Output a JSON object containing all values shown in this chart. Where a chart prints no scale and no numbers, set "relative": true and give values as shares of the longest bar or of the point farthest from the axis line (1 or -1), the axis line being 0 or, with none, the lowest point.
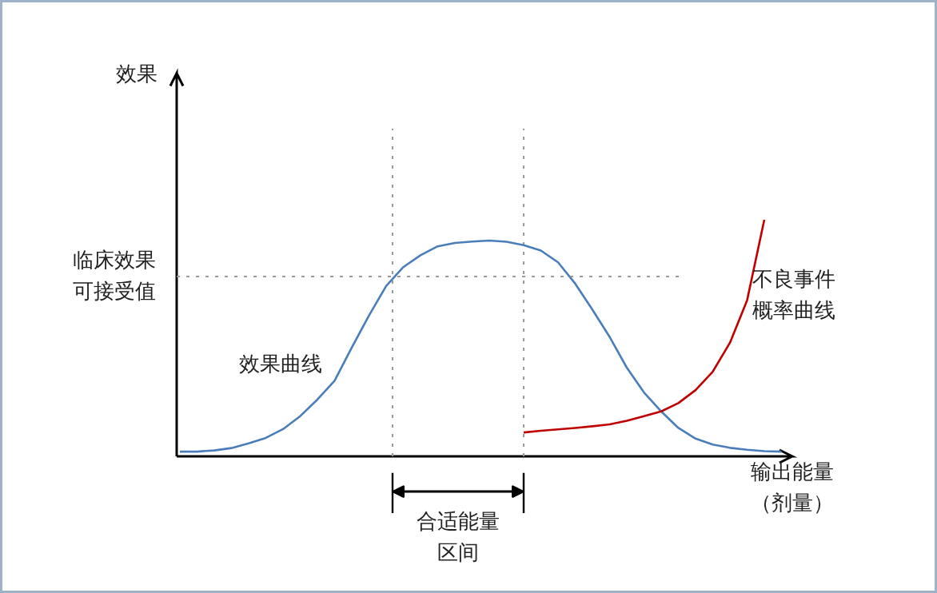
{
  "chart_data": {
    "type": "line",
    "relative": true,
    "xlabel": "输出能量（剂量）",
    "grid": false,
    "line_style": "solid",
    "categories": [
      null,
      null,
      null,
      null,
      null,
      null,
      null,
      null,
      null,
      null,
      null,
      null,
      null,
      null,
      null,
      null,
      null,
      null,
      null,
      null,
      null,
      null,
      null,
      null,
      null,
      null,
      null,
      null,
      null,
      null,
      null,
      null,
      null,
      null,
      null,
      null
    ],
    "series": [
      {
        "name": "效果曲线",
        "color": "#4a7ebb",
        "values": [
          0.02,
          0.02,
          0.025,
          0.035,
          0.055,
          0.078,
          0.115,
          0.17,
          0.24,
          0.32,
          0.46,
          0.595,
          0.72,
          0.8,
          0.85,
          0.888,
          0.902,
          0.908,
          0.912,
          0.907,
          0.893,
          0.87,
          0.82,
          0.73,
          0.62,
          0.505,
          0.375,
          0.27,
          0.19,
          0.12,
          0.075,
          0.05,
          0.036,
          0.028,
          0.022,
          0.02
        ]
      },
      {
        "name": "不良事件概率曲线",
        "color": "#c00000",
        "values": [
          null,
          null,
          null,
          null,
          null,
          null,
          null,
          null,
          null,
          null,
          null,
          null,
          null,
          null,
          null,
          null,
          null,
          null,
          null,
          null,
          0.101,
          0.108,
          0.114,
          0.12,
          0.127,
          0.135,
          0.15,
          0.17,
          0.19,
          0.225,
          0.28,
          0.358,
          0.48,
          0.66,
          1.0,
          null
        ]
      }
    ],
    "ref_lines": [
      {
        "axis": "y",
        "value": 0.76,
        "label": "临床效果可接受值",
        "color": "#999999",
        "line_style": "dotted"
      }
    ],
    "annotations": [
      "效果",
      "合适能量区间"
    ]
  }
}
